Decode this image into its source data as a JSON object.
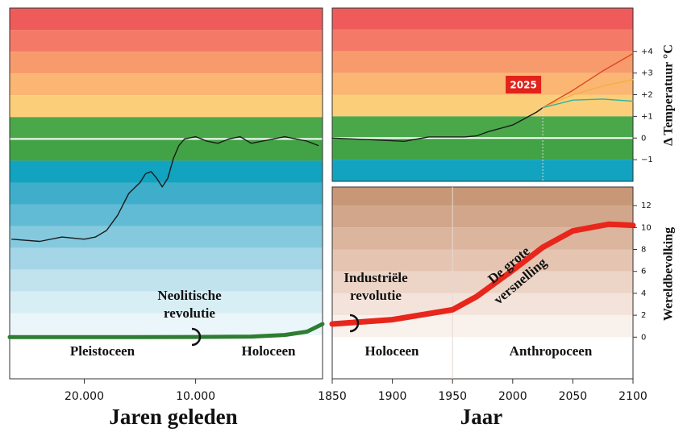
{
  "chart_data": [
    {
      "type": "line",
      "xlabel": "Jaren geleden",
      "xlim": [
        26700,
        -1400
      ],
      "xticks": [
        {
          "value": 20000,
          "label": "20.000"
        },
        {
          "value": 10000,
          "label": "10.000"
        }
      ],
      "ylim": [
        -11,
        6
      ],
      "y2lim": [
        -3.8,
        30
      ],
      "series": [
        {
          "color": "#1a1a1a",
          "x": [
            26500,
            24000,
            22000,
            20000,
            19000,
            18000,
            17000,
            16000,
            15000,
            14500,
            14000,
            13500,
            13000,
            12500,
            12000,
            11500,
            11000,
            10000,
            9000,
            8000,
            7000,
            6000,
            5000,
            4000,
            3000,
            2000,
            1000,
            0,
            -1000
          ],
          "values": [
            -4.6,
            -4.7,
            -4.5,
            -4.6,
            -4.5,
            -4.2,
            -3.5,
            -2.5,
            -2.0,
            -1.6,
            -1.5,
            -1.8,
            -2.2,
            -1.8,
            -0.9,
            -0.3,
            0.0,
            0.1,
            -0.1,
            -0.2,
            0.0,
            0.1,
            -0.2,
            -0.1,
            0.0,
            0.1,
            0.0,
            -0.1,
            -0.3
          ]
        },
        {
          "color": "#2e7d32",
          "axis": "y2",
          "x": [
            26700,
            15000,
            10000,
            5000,
            2000,
            0,
            -1400
          ],
          "values": [
            0,
            0,
            0.01,
            0.05,
            0.2,
            0.5,
            1.2
          ]
        }
      ],
      "annotations": [
        "Pleistoceen",
        [
          "Neolitische",
          "revolutie"
        ],
        "Holoceen"
      ]
    },
    {
      "type": "line",
      "ylabel": "Δ Temperatuur °C",
      "xlim": [
        1850,
        2100
      ],
      "ylim": [
        -2,
        6
      ],
      "yticks": [
        {
          "value": 4,
          "label": "+4"
        },
        {
          "value": 3,
          "label": "+3"
        },
        {
          "value": 2,
          "label": "+2"
        },
        {
          "value": 1,
          "label": "+1"
        },
        0,
        {
          "value": -1,
          "label": "−1"
        }
      ],
      "series": [
        {
          "color": "#1a1a1a",
          "x": [
            1850,
            1870,
            1890,
            1910,
            1930,
            1950,
            1960,
            1970,
            1980,
            1990,
            2000,
            2010,
            2020,
            2025
          ],
          "values": [
            0.0,
            -0.05,
            -0.1,
            -0.15,
            0.05,
            0.05,
            0.05,
            0.1,
            0.3,
            0.45,
            0.6,
            0.9,
            1.2,
            1.4
          ]
        },
        {
          "color": "#e0461e",
          "x": [
            2025,
            2050,
            2075,
            2100
          ],
          "values": [
            1.4,
            2.2,
            3.1,
            3.9
          ]
        },
        {
          "color": "#f5b041",
          "x": [
            2025,
            2050,
            2075,
            2100
          ],
          "values": [
            1.4,
            2.0,
            2.4,
            2.7
          ]
        },
        {
          "color": "#2bb3a3",
          "x": [
            2025,
            2050,
            2075,
            2100
          ],
          "values": [
            1.4,
            1.75,
            1.8,
            1.7
          ]
        }
      ],
      "marker": {
        "x": 2025,
        "label": "2025"
      }
    },
    {
      "type": "line",
      "xlabel": "Jaar",
      "ylabel": "Wereldbevolking",
      "xlim": [
        1850,
        2100
      ],
      "xticks": [
        1850,
        1900,
        1950,
        2000,
        2050,
        2100
      ],
      "ylim": [
        -3.8,
        13.7
      ],
      "yticks": [
        0,
        2,
        4,
        6,
        8,
        10,
        12
      ],
      "series": [
        {
          "color": "#e8261c",
          "x": [
            1850,
            1900,
            1950,
            1970,
            1990,
            2000,
            2025,
            2050,
            2080,
            2100
          ],
          "values": [
            1.2,
            1.6,
            2.5,
            3.7,
            5.3,
            6.1,
            8.2,
            9.7,
            10.3,
            10.2
          ]
        }
      ],
      "annotations": [
        [
          "Industriële",
          "revolutie"
        ],
        "Holoceen",
        "Anthropoceen",
        [
          "De grote",
          "versnelling"
        ]
      ]
    }
  ]
}
